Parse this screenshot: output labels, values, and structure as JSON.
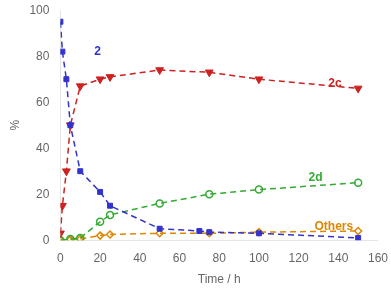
{
  "chart_data": {
    "type": "line",
    "x_label": "Time / h",
    "y_label": "%",
    "xlim": [
      0,
      160
    ],
    "ylim": [
      0,
      100
    ],
    "xticks": [
      0,
      20,
      40,
      60,
      80,
      100,
      120,
      140,
      160
    ],
    "yticks": [
      0,
      20,
      40,
      60,
      80,
      100
    ],
    "grid": false,
    "series": [
      {
        "name": "2",
        "color": "#3333CC",
        "marker": "square",
        "line_style": "dashed",
        "x": [
          0,
          1,
          3,
          5,
          10,
          20,
          25,
          50,
          70,
          75,
          100,
          150
        ],
        "values": [
          95,
          82,
          70,
          50,
          30,
          21,
          15,
          5,
          4,
          3.5,
          3,
          1
        ]
      },
      {
        "name": "2c",
        "color": "#CC2222",
        "marker": "triangle_down",
        "line_style": "dashed",
        "x": [
          0,
          1,
          3,
          5,
          10,
          20,
          25,
          50,
          75,
          100,
          150
        ],
        "values": [
          3,
          15,
          30,
          50,
          67,
          70,
          71,
          74,
          73,
          70,
          66
        ]
      },
      {
        "name": "2d",
        "color": "#33AA33",
        "marker": "circle_open",
        "line_style": "dashed",
        "x": [
          0,
          5,
          10,
          20,
          25,
          50,
          75,
          100,
          150
        ],
        "values": [
          0,
          0.5,
          1,
          8,
          11,
          16,
          20,
          22,
          25
        ]
      },
      {
        "name": "Others",
        "color": "#DD8800",
        "marker": "diamond_open",
        "line_style": "dashed",
        "x": [
          0,
          5,
          10,
          20,
          25,
          50,
          75,
          100,
          150
        ],
        "values": [
          0,
          0.3,
          0.5,
          2,
          2.5,
          3,
          3,
          3.5,
          4
        ]
      }
    ],
    "annotations": [
      {
        "text": "2",
        "x": 17,
        "y": 82,
        "color": "#3333CC"
      },
      {
        "text": "2c",
        "x": 135,
        "y": 68,
        "color": "#CC2222"
      },
      {
        "text": "2d",
        "x": 125,
        "y": 27,
        "color": "#33AA33"
      },
      {
        "text": "Others",
        "x": 128,
        "y": 6,
        "color": "#DD8800"
      }
    ]
  }
}
